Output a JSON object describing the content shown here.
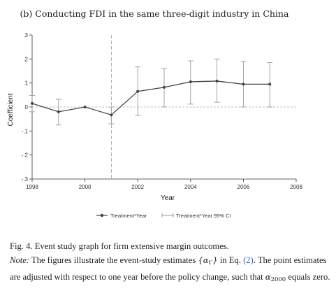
{
  "chart_data": {
    "type": "line",
    "title": "(b) Conducting FDI in the same three-digit industry in China",
    "xlabel": "Year",
    "ylabel": "Coefficient",
    "xlim": [
      1998,
      2008
    ],
    "ylim": [
      -0.3,
      0.3
    ],
    "x_ticks": [
      1998,
      2000,
      2002,
      2004,
      2006,
      2008
    ],
    "y_ticks": [
      0.3,
      0.2,
      0.1,
      0,
      -0.1,
      -0.2,
      -0.3
    ],
    "y_tick_labels": [
      ".3",
      ".2",
      ".1",
      "0",
      "-.1",
      "-.2",
      "-.3"
    ],
    "reference_line_y": 0,
    "reference_line_x": 2001,
    "series": [
      {
        "name": "Treatment*Year",
        "x": [
          1998,
          1999,
          2000,
          2001,
          2002,
          2003,
          2004,
          2005,
          2006,
          2007
        ],
        "values": [
          0.015,
          -0.02,
          0.0,
          -0.033,
          0.065,
          0.082,
          0.105,
          0.108,
          0.095,
          0.095
        ]
      },
      {
        "name": "Treatment*Year 95% CI",
        "x": [
          1998,
          1999,
          2000,
          2001,
          2002,
          2003,
          2004,
          2005,
          2006,
          2007
        ],
        "lower": [
          -0.02,
          -0.075,
          0.0,
          -0.07,
          -0.035,
          0.0,
          0.012,
          0.02,
          0.0,
          0.0
        ],
        "upper": [
          0.048,
          0.032,
          0.0,
          0.0,
          0.167,
          0.16,
          0.192,
          0.2,
          0.19,
          0.185
        ]
      }
    ],
    "grid": false,
    "legend_position": "bottom"
  },
  "caption": {
    "fig_label": "Fig. 4. Event study graph for firm extensive margin outcomes.",
    "note_label": "Note:",
    "note_text_1": "The figures illustrate the event-study estimates",
    "math_estimates": "{α",
    "math_estimates_sub": "tʹ",
    "math_estimates_close": "}",
    "note_text_2": "in Eq.",
    "eq_ref": "(2)",
    "note_text_3": ". The point estimates are adjusted with respect to one year before the policy change, such that",
    "math_alpha": "α",
    "math_alpha_sub": "2000",
    "note_text_4": "equals zero."
  }
}
